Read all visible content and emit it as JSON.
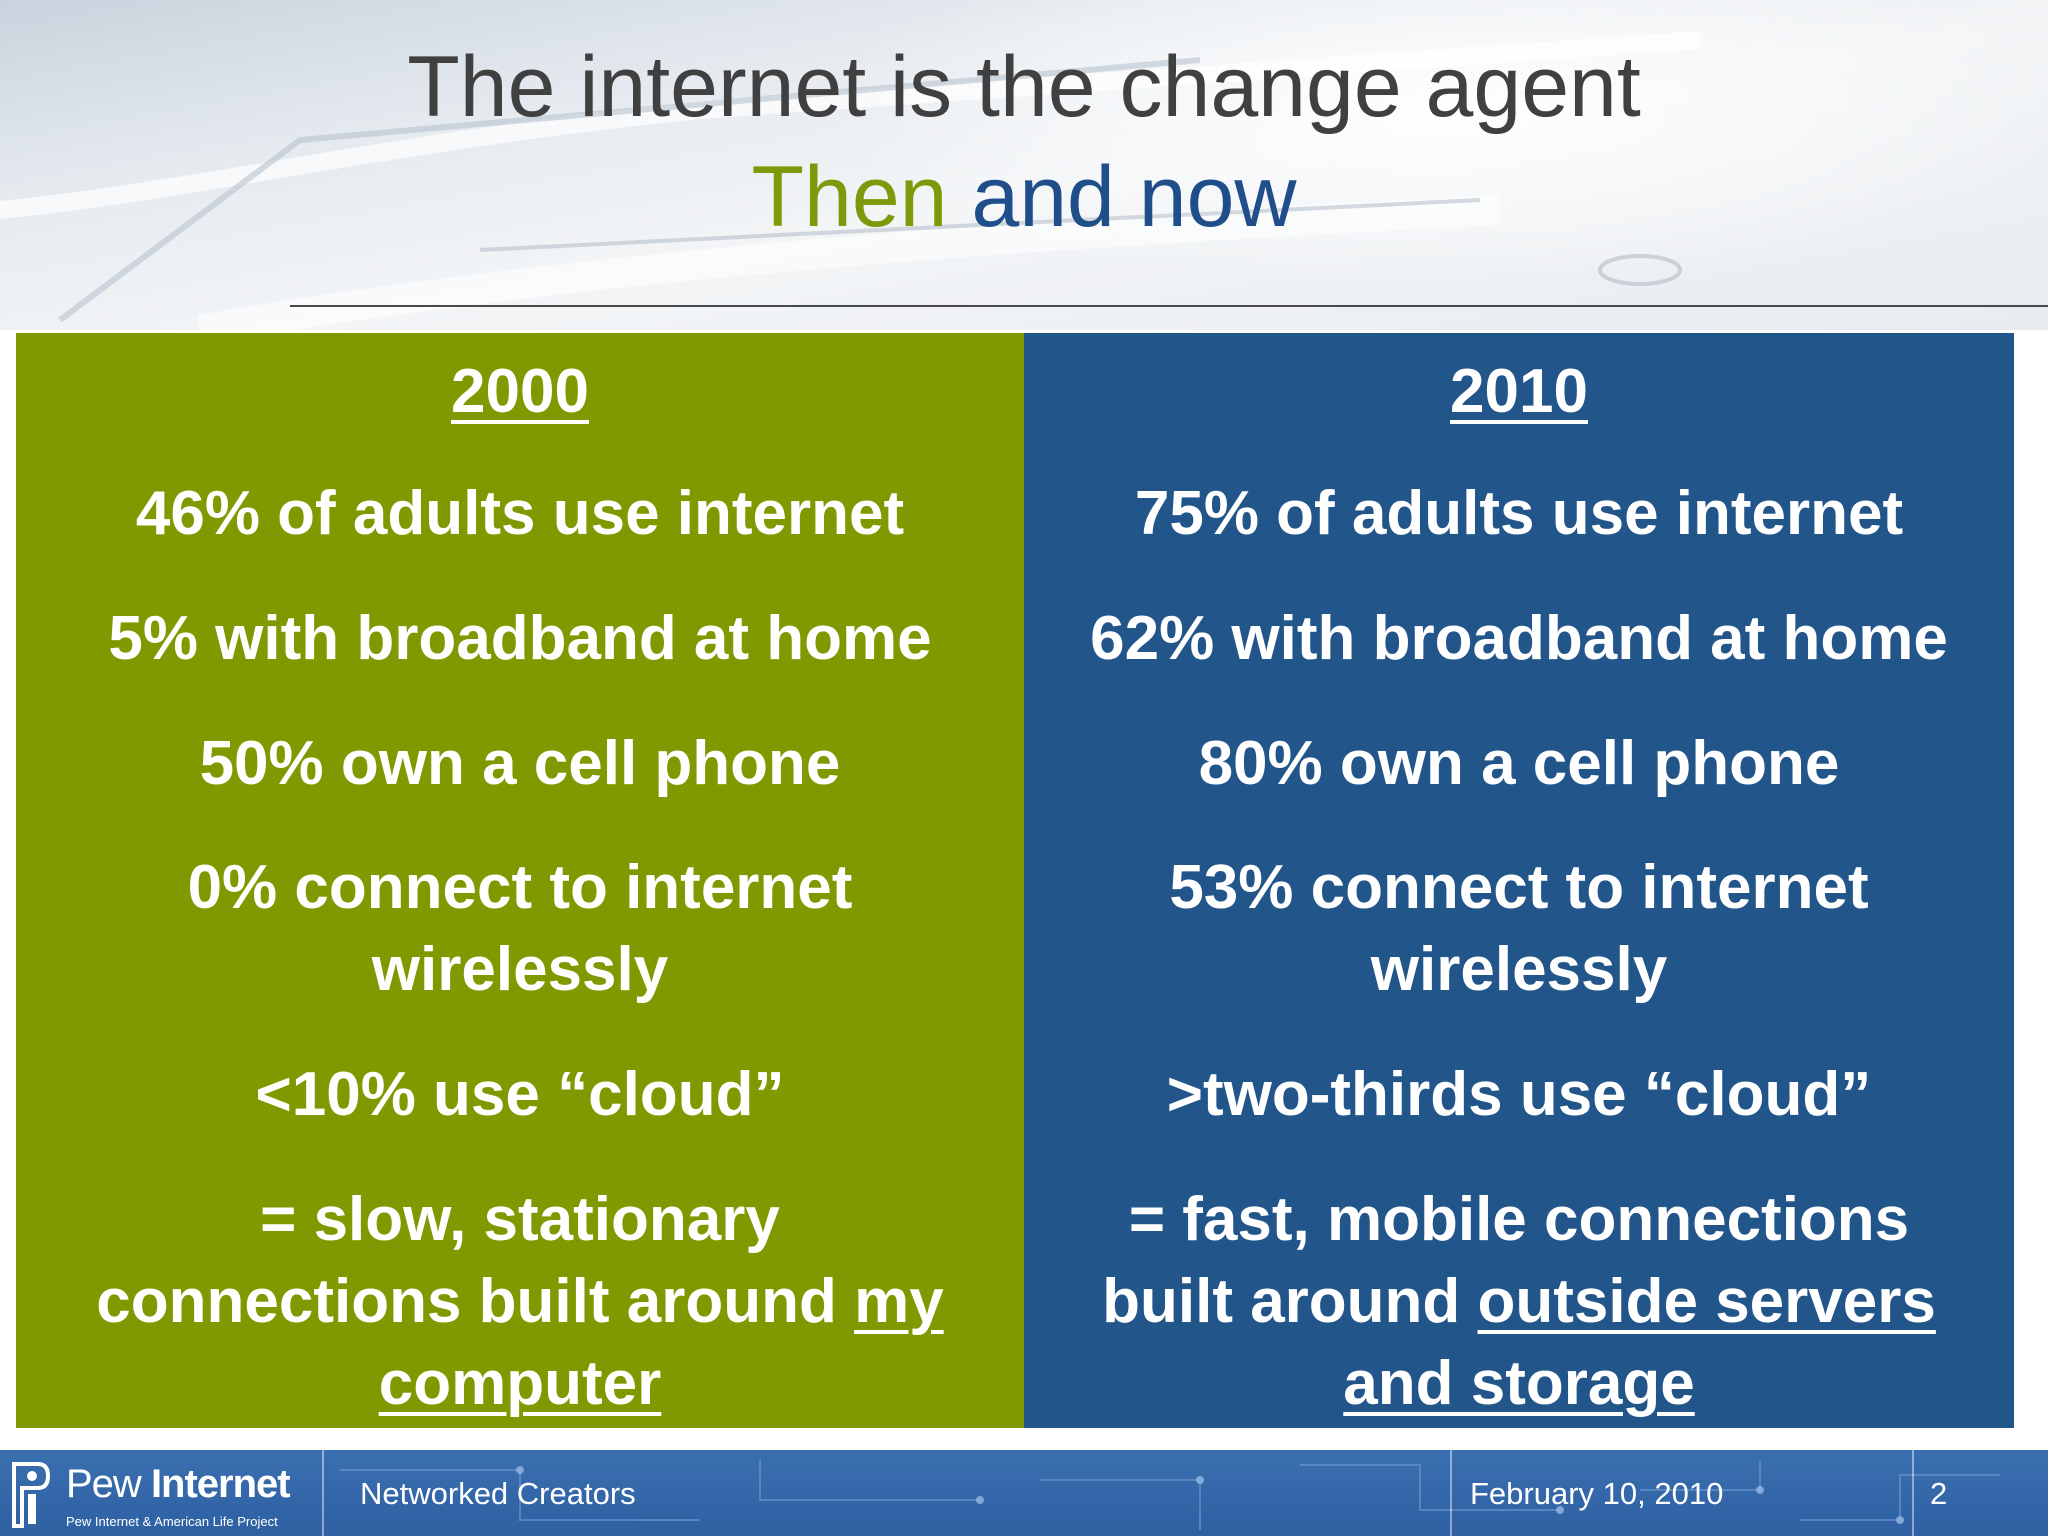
{
  "title": {
    "line1": "The internet is the change agent",
    "line2_then": "Then",
    "line2_rest": " and now"
  },
  "left": {
    "year": "2000",
    "items": [
      "46% of adults use internet",
      "5% with broadband at home",
      "50% own a cell phone",
      "0% connect to internet",
      "wirelessly",
      "<10% use “cloud”",
      "= slow, stationary"
    ],
    "summary_line2_text": "connections built around ",
    "summary_line2_underlined": "my",
    "summary_line3_underlined": "computer"
  },
  "right": {
    "year": "2010",
    "items": [
      "75% of adults use internet",
      "62% with broadband at home",
      "80% own a cell phone",
      "53% connect to internet",
      "wirelessly",
      ">two-thirds use “cloud”",
      "= fast, mobile connections"
    ],
    "summary_line2_text": "built around ",
    "summary_line2_underlined": "outside servers",
    "summary_line3_underlined": "and storage"
  },
  "footer": {
    "logo_main_light": "Pew",
    "logo_main_bold": "Internet",
    "logo_sub": "Pew Internet & American Life Project",
    "presentation": "Networked Creators",
    "date": "February 10, 2010",
    "page": "2"
  },
  "colors": {
    "left_panel": "#7f9a00",
    "right_panel": "#225589",
    "title_then": "#7e9a0a",
    "title_andnow": "#1f4e8a",
    "footer": "#3a6fb0"
  }
}
